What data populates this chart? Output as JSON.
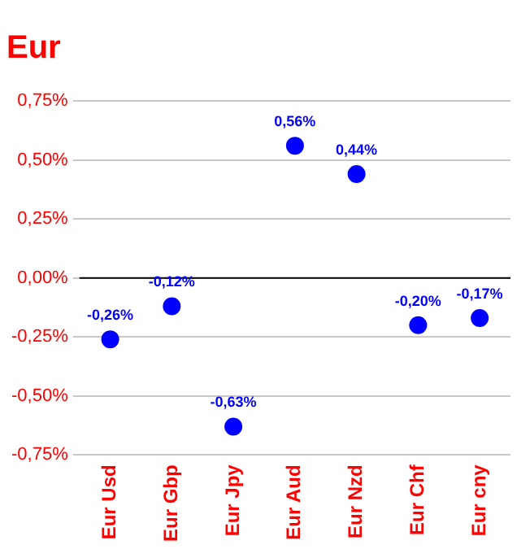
{
  "chart_data": {
    "type": "scatter",
    "title": "Eur",
    "categories": [
      "Eur Usd",
      "Eur Gbp",
      "Eur Jpy",
      "Eur Aud",
      "Eur Nzd",
      "Eur Chf",
      "Eur cny"
    ],
    "values": [
      -0.26,
      -0.12,
      -0.63,
      0.56,
      0.44,
      -0.2,
      -0.17
    ],
    "value_labels": [
      "-0,26%",
      "-0,12%",
      "-0,63%",
      "0,56%",
      "0,44%",
      "-0,20%",
      "-0,17%"
    ],
    "color": "#0000ff",
    "marker": "circle",
    "grid": "y",
    "legend": false,
    "ylim": [
      -0.75,
      0.75
    ],
    "yticks": [
      {
        "value": -0.75,
        "label": "-0,75%"
      },
      {
        "value": -0.5,
        "label": "-0,50%"
      },
      {
        "value": -0.25,
        "label": "-0,25%"
      },
      {
        "value": 0,
        "label": "0,00%"
      },
      {
        "value": 0.25,
        "label": "0,25%"
      },
      {
        "value": 0.5,
        "label": "0,50%"
      },
      {
        "value": 0.75,
        "label": "0,75%"
      }
    ],
    "ref_lines": [
      {
        "axis": "y",
        "value": 0,
        "color": "#000000"
      }
    ]
  }
}
